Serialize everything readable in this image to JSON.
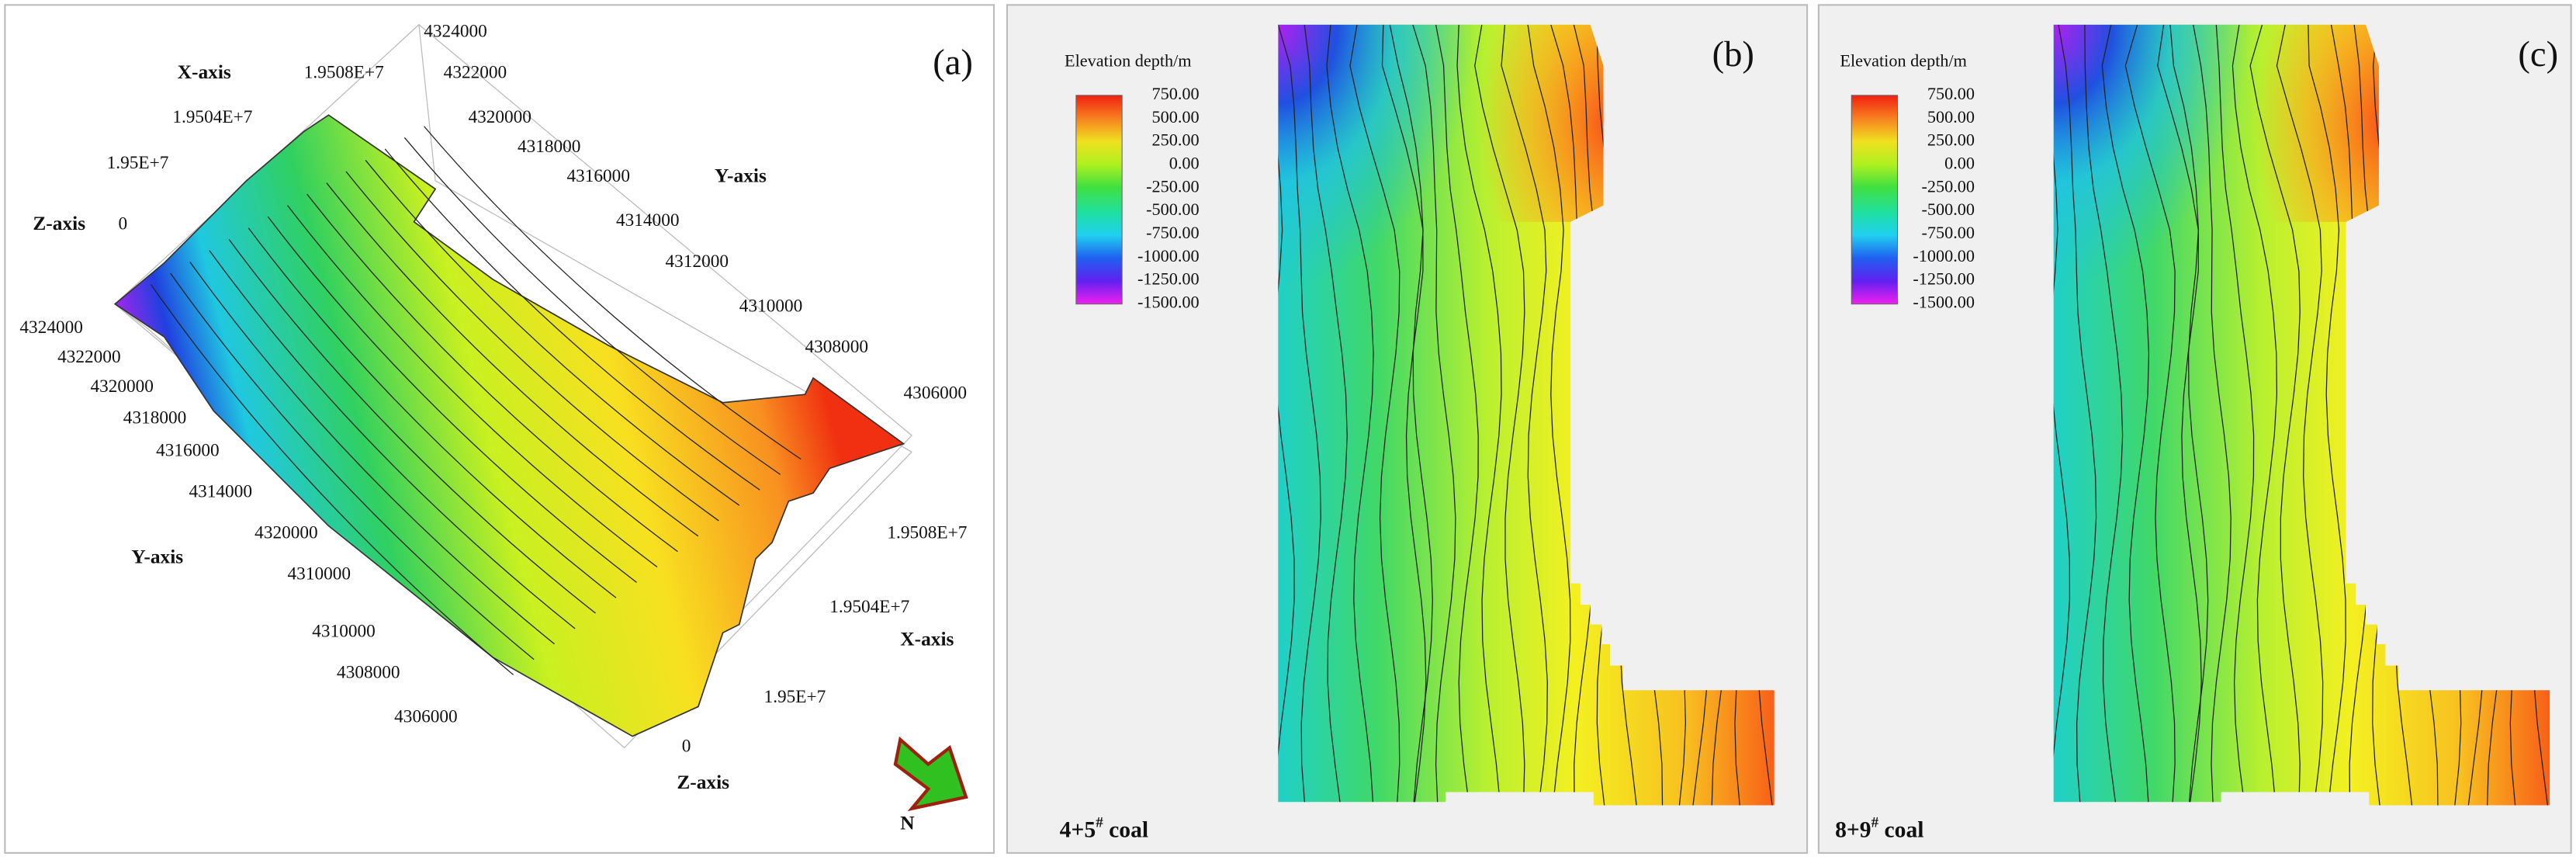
{
  "panel_a": {
    "label": "(a)",
    "texts": [
      "4324000",
      "X-axis",
      "1.9508E+7",
      "4322000",
      "1.9504E+7",
      "4320000",
      "4318000",
      "1.95E+7",
      "4316000",
      "Y-axis",
      "Z-axis",
      "0",
      "4314000",
      "4312000",
      "4310000",
      "4308000",
      "4306000",
      "4324000",
      "4322000",
      "4320000",
      "4318000",
      "4316000",
      "4314000",
      "Y-axis",
      "4320000",
      "4310000",
      "4310000",
      "4308000",
      "4306000",
      "1.9508E+7",
      "1.9504E+7",
      "X-axis",
      "1.95E+7",
      "0",
      "Z-axis"
    ],
    "north": "N"
  },
  "panel_b": {
    "label": "(b)",
    "legend_title": "Elevation depth/m",
    "legend_labels": [
      "750.00",
      "500.00",
      "250.00",
      "0.00",
      "-250.00",
      "-500.00",
      "-750.00",
      "-1000.00",
      "-1250.00",
      "-1500.00"
    ],
    "caption": [
      "4+5",
      "#",
      " coal"
    ]
  },
  "panel_c": {
    "label": "(c)",
    "legend_title": "Elevation depth/m",
    "legend_labels": [
      "750.00",
      "500.00",
      "250.00",
      "0.00",
      "-250.00",
      "-500.00",
      "-750.00",
      "-1000.00",
      "-1250.00",
      "-1500.00"
    ],
    "caption": [
      "8+9",
      "#",
      " coal"
    ]
  }
}
